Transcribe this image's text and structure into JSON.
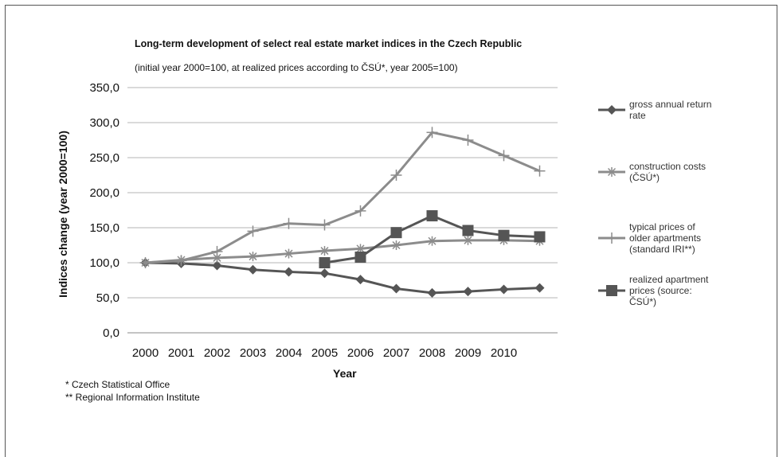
{
  "chart_data": {
    "type": "line",
    "title": "Long-term development of select real estate market indices in the Czech Republic",
    "subtitle": "(initial year 2000=100, at realized prices according to ČSÚ*, year 2005=100)",
    "xlabel": "Year",
    "ylabel": "Indices change (year 2000=100)",
    "ylim": [
      0,
      350
    ],
    "yticks": [
      "0,0",
      "50,0",
      "100,0",
      "150,0",
      "200,0",
      "250,0",
      "300,0",
      "350,0"
    ],
    "ytick_values": [
      0,
      50,
      100,
      150,
      200,
      250,
      300,
      350
    ],
    "categories": [
      "2000",
      "2001",
      "2002",
      "2003",
      "2004",
      "2005",
      "2006",
      "2007",
      "2008",
      "2009",
      "2010",
      ""
    ],
    "grid": true,
    "legend_position": "right",
    "series": [
      {
        "name": "gross annual return rate",
        "name_lines": [
          "gross annual return",
          "rate"
        ],
        "marker": "diamond",
        "color": "#555555",
        "values": [
          100,
          99,
          96,
          90,
          87,
          85,
          76,
          63,
          57,
          59,
          62,
          64
        ]
      },
      {
        "name": "construction costs (ČSÚ*)",
        "name_lines": [
          "construction costs",
          "(ČSÚ*)"
        ],
        "marker": "asterisk",
        "color": "#8c8c8c",
        "values": [
          100,
          104,
          107,
          109,
          113,
          117,
          120,
          125,
          131,
          132,
          132,
          131
        ]
      },
      {
        "name": "typical prices of older apartments (standard IRI**)",
        "name_lines": [
          "typical prices of",
          "older apartments",
          "(standard IRI**)"
        ],
        "marker": "plus",
        "color": "#8c8c8c",
        "values": [
          100,
          103,
          116,
          145,
          156,
          154,
          174,
          225,
          286,
          275,
          253,
          231
        ]
      },
      {
        "name": "realized apartment prices (source: ČSÚ*)",
        "name_lines": [
          "realized apartment",
          "prices (source:",
          "ČSÚ*)"
        ],
        "marker": "square",
        "color": "#555555",
        "values": [
          null,
          null,
          null,
          null,
          null,
          100,
          108,
          143,
          167,
          146,
          139,
          137
        ]
      }
    ]
  },
  "footnotes": [
    "* Czech Statistical Office",
    "** Regional Information Institute"
  ]
}
